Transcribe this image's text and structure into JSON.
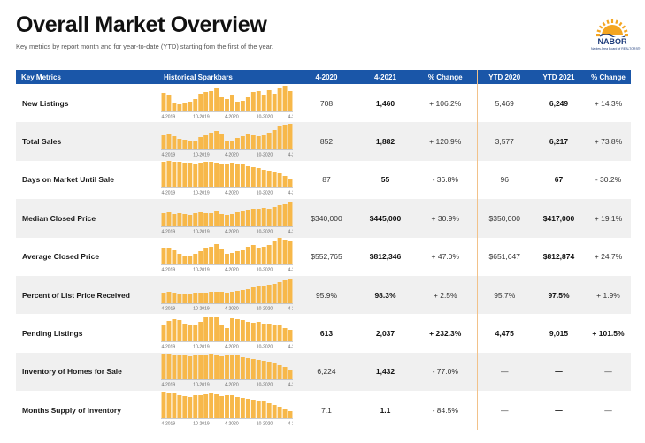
{
  "header": {
    "title": "Overall Market Overview",
    "subtitle": "Key metrics by report month and for year-to-date (YTD) starting fom the first of the year."
  },
  "logo": {
    "name": "NABOR",
    "tagline": "Naples Area Board of REALTORS®",
    "colors": {
      "sun": "#f4a521",
      "text": "#1d3b7a"
    }
  },
  "table": {
    "headers": [
      "Key Metrics",
      "Historical Sparkbars",
      "4-2020",
      "4-2021",
      "% Change",
      "YTD 2020",
      "YTD 2021",
      "% Change"
    ],
    "spark_ticks": [
      "4-2019",
      "10-2019",
      "4-2020",
      "10-2020",
      "4-2021"
    ],
    "bar_color": "#f7b84a",
    "rows": [
      {
        "metric": "New Listings",
        "v2020": "708",
        "v2021": "1,460",
        "change": "+ 106.2%",
        "ytd2020": "5,469",
        "ytd2021": "6,249",
        "ytdchange": "+ 14.3%",
        "spark": [
          42,
          38,
          20,
          16,
          20,
          22,
          28,
          40,
          44,
          46,
          52,
          32,
          28,
          36,
          22,
          24,
          32,
          44,
          46,
          38,
          48,
          40,
          52,
          58,
          46
        ]
      },
      {
        "metric": "Total Sales",
        "v2020": "852",
        "v2021": "1,882",
        "change": "+ 120.9%",
        "ytd2020": "3,577",
        "ytd2021": "6,217",
        "ytdchange": "+ 73.8%",
        "spark": [
          32,
          34,
          30,
          24,
          22,
          20,
          20,
          28,
          32,
          38,
          42,
          34,
          18,
          20,
          26,
          30,
          34,
          32,
          30,
          32,
          38,
          44,
          52,
          56,
          58
        ]
      },
      {
        "metric": "Days on Market Until Sale",
        "v2020": "87",
        "v2021": "55",
        "change": "- 36.8%",
        "ytd2020": "96",
        "ytd2021": "67",
        "ytdchange": "- 30.2%",
        "spark": [
          58,
          60,
          58,
          58,
          56,
          56,
          52,
          56,
          58,
          58,
          56,
          54,
          52,
          56,
          54,
          52,
          48,
          46,
          44,
          40,
          38,
          36,
          32,
          26,
          20
        ]
      },
      {
        "metric": "Median Closed Price",
        "v2020": "$340,000",
        "v2021": "$445,000",
        "change": "+ 30.9%",
        "ytd2020": "$350,000",
        "ytd2021": "$417,000",
        "ytdchange": "+ 19.1%",
        "spark": [
          30,
          32,
          28,
          30,
          28,
          26,
          30,
          32,
          30,
          30,
          34,
          28,
          26,
          28,
          32,
          34,
          36,
          40,
          40,
          42,
          40,
          44,
          48,
          50,
          56
        ]
      },
      {
        "metric": "Average Closed Price",
        "v2020": "$552,765",
        "v2021": "$812,346",
        "change": "+ 47.0%",
        "ytd2020": "$651,647",
        "ytd2021": "$812,874",
        "ytdchange": "+ 24.7%",
        "spark": [
          36,
          38,
          32,
          24,
          20,
          20,
          24,
          30,
          36,
          40,
          46,
          34,
          24,
          26,
          30,
          32,
          40,
          44,
          38,
          40,
          44,
          52,
          60,
          56,
          54
        ]
      },
      {
        "metric": "Percent of List Price Received",
        "v2020": "95.9%",
        "v2021": "98.3%",
        "change": "+ 2.5%",
        "ytd2020": "95.7%",
        "ytd2021": "97.5%",
        "ytdchange": "+ 1.9%",
        "spark": [
          24,
          26,
          24,
          22,
          22,
          22,
          24,
          24,
          24,
          26,
          26,
          26,
          24,
          26,
          28,
          30,
          32,
          36,
          38,
          40,
          42,
          44,
          48,
          52,
          56
        ]
      },
      {
        "metric": "Pending Listings",
        "v2020": "613",
        "v2021": "2,037",
        "change": "+ 232.3%",
        "ytd2020": "4,475",
        "ytd2021": "9,015",
        "ytdchange": "+ 101.5%",
        "bold": true,
        "spark": [
          36,
          46,
          50,
          48,
          40,
          36,
          38,
          44,
          54,
          56,
          54,
          36,
          30,
          52,
          50,
          48,
          44,
          42,
          44,
          40,
          40,
          38,
          36,
          30,
          26
        ]
      },
      {
        "metric": "Inventory of Homes for Sale",
        "v2020": "6,224",
        "v2021": "1,432",
        "change": "- 77.0%",
        "ytd2020": "—",
        "ytd2021": "—",
        "ytdchange": "—",
        "spark": [
          58,
          58,
          56,
          54,
          54,
          52,
          56,
          56,
          56,
          58,
          56,
          52,
          56,
          56,
          54,
          50,
          48,
          46,
          44,
          42,
          40,
          36,
          32,
          28,
          20
        ]
      },
      {
        "metric": "Months Supply of Inventory",
        "v2020": "7.1",
        "v2021": "1.1",
        "change": "- 84.5%",
        "ytd2020": "—",
        "ytd2021": "—",
        "ytdchange": "—",
        "spark": [
          60,
          58,
          56,
          52,
          50,
          48,
          52,
          52,
          54,
          56,
          54,
          50,
          52,
          52,
          48,
          46,
          44,
          42,
          40,
          38,
          34,
          30,
          26,
          22,
          16
        ]
      }
    ]
  }
}
